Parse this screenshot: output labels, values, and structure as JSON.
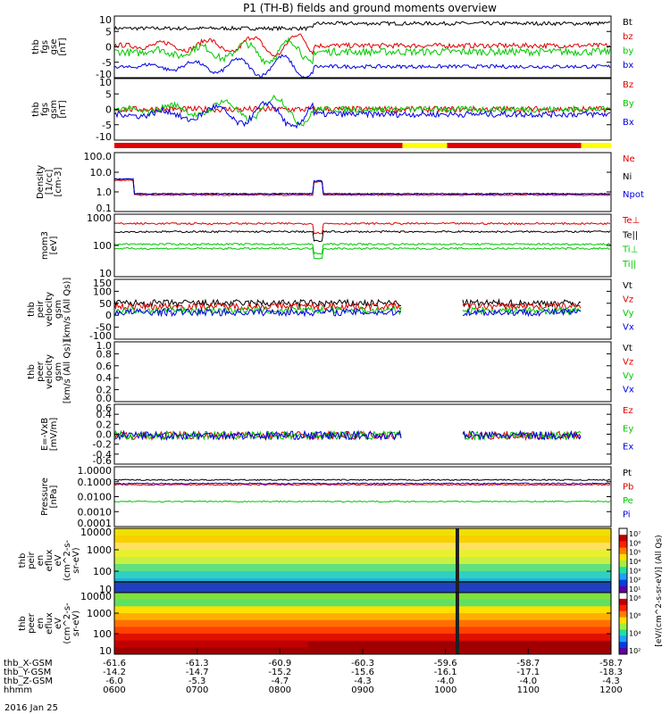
{
  "title": "P1 (TH-B) fields and ground moments overview",
  "footer_date": "2016 Jan 25",
  "colors": {
    "black": "#000000",
    "red": "#e00000",
    "green": "#00c800",
    "blue": "#0000e0",
    "yellow": "#ffff00"
  },
  "mode_bar": {
    "segments": [
      {
        "color": "red",
        "from": 0,
        "to": 0.58
      },
      {
        "color": "yellow",
        "from": 0.58,
        "to": 0.67
      },
      {
        "color": "red",
        "from": 0.67,
        "to": 0.94
      },
      {
        "color": "yellow",
        "from": 0.94,
        "to": 1.0
      }
    ]
  },
  "chart_data": [
    {
      "type": "line",
      "ylabel": [
        "thb",
        "fgs",
        "gse",
        "[nT]"
      ],
      "ylim": [
        -10,
        10
      ],
      "yticks": [
        "10",
        "5",
        "0",
        "-5",
        "-10"
      ],
      "series": [
        {
          "name": "Bt",
          "color": "black"
        },
        {
          "name": "bz",
          "color": "red"
        },
        {
          "name": "by",
          "color": "green"
        },
        {
          "name": "bx",
          "color": "blue"
        }
      ]
    },
    {
      "type": "line",
      "ylabel": [
        "thb",
        "fgs",
        "gsm",
        "[nT]"
      ],
      "ylim": [
        -10,
        10
      ],
      "yticks": [
        "10",
        "5",
        "0",
        "-5",
        "-10"
      ],
      "series": [
        {
          "name": "Bz",
          "color": "red"
        },
        {
          "name": "By",
          "color": "green"
        },
        {
          "name": "Bx",
          "color": "blue"
        }
      ]
    },
    {
      "type": "line",
      "ylabel": [
        "Density",
        "[1/cc]",
        "[cm-3]"
      ],
      "log": true,
      "ylim": [
        0.1,
        100
      ],
      "yticks": [
        "100.0",
        "10.0",
        "1.0",
        "0.1"
      ],
      "series": [
        {
          "name": "Ne",
          "color": "red"
        },
        {
          "name": "Ni",
          "color": "black"
        },
        {
          "name": "Npot",
          "color": "blue"
        }
      ]
    },
    {
      "type": "line",
      "ylabel": [
        "mom3",
        "[eV]"
      ],
      "log": true,
      "ylim": [
        10,
        1000
      ],
      "yticks": [
        "1000",
        "100",
        "10"
      ],
      "series": [
        {
          "name": "Te⊥",
          "color": "red"
        },
        {
          "name": "Te||",
          "color": "black"
        },
        {
          "name": "Ti⊥",
          "color": "green"
        },
        {
          "name": "Ti||",
          "color": "green"
        }
      ]
    },
    {
      "type": "line",
      "ylabel": [
        "thb",
        "peir",
        "velocity",
        "gsm",
        "[km/s (All Qs)]"
      ],
      "ylim": [
        -100,
        150
      ],
      "yticks": [
        "150",
        "100",
        "50",
        "0",
        "-50",
        "-100"
      ],
      "series": [
        {
          "name": "Vt",
          "color": "black"
        },
        {
          "name": "Vz",
          "color": "red"
        },
        {
          "name": "Vy",
          "color": "green"
        },
        {
          "name": "Vx",
          "color": "blue"
        }
      ]
    },
    {
      "type": "line",
      "ylabel": [
        "thb",
        "peer",
        "velocity",
        "gsm",
        "[km/s (All Qs)]"
      ],
      "ylim": [
        0,
        1
      ],
      "yticks": [
        "1.0",
        "0.8",
        "0.6",
        "0.4",
        "0.2",
        "0.0"
      ],
      "series": [
        {
          "name": "Vt",
          "color": "black"
        },
        {
          "name": "Vz",
          "color": "red"
        },
        {
          "name": "Vy",
          "color": "green"
        },
        {
          "name": "Vx",
          "color": "blue"
        }
      ]
    },
    {
      "type": "line",
      "ylabel": [
        "E=-VxB",
        "[mV/m]"
      ],
      "ylim": [
        -0.6,
        0.6
      ],
      "yticks": [
        "0.6",
        "0.4",
        "0.2",
        "0.0",
        "-0.2",
        "-0.4",
        "-0.6"
      ],
      "series": [
        {
          "name": "Ez",
          "color": "red"
        },
        {
          "name": "Ey",
          "color": "green"
        },
        {
          "name": "Ex",
          "color": "blue"
        }
      ]
    },
    {
      "type": "line",
      "ylabel": [
        "Pressure",
        "[nPa]"
      ],
      "log": true,
      "ylim": [
        0.0001,
        1
      ],
      "yticks": [
        "1.0000",
        "0.1000",
        "0.0100",
        "0.0010",
        "0.0001"
      ],
      "series": [
        {
          "name": "Pt",
          "color": "black"
        },
        {
          "name": "Pb",
          "color": "red"
        },
        {
          "name": "Pe",
          "color": "green"
        },
        {
          "name": "Pi",
          "color": "blue"
        }
      ]
    },
    {
      "type": "heatmap",
      "ylabel": [
        "thb",
        "peir",
        "en",
        "eflux",
        "eV",
        "(cm^2-s-",
        "sr-eV)"
      ],
      "yticks": [
        "10000",
        "1000",
        "100",
        "10"
      ]
    },
    {
      "type": "heatmap",
      "ylabel": [
        "thb",
        "peer",
        "en",
        "eflux",
        "eV",
        "(cm^2-s-",
        "sr-eV)"
      ],
      "yticks": [
        "10000",
        "1000",
        "100",
        "10"
      ]
    }
  ],
  "colorbar": {
    "label": "[eV/(cm^2-s-sr-eV)] (All Qs)",
    "top_ticks": [
      "10⁷",
      "10⁶",
      "10⁵",
      "10⁴",
      "10³",
      "10²",
      "10¹"
    ],
    "bottom_ticks": [
      "10⁸",
      "10⁶",
      "10⁴",
      "10²"
    ]
  },
  "x_axis": {
    "row_labels": [
      "thb_X-GSM",
      "thb_Y-GSM",
      "thb_Z-GSM",
      "hhmm"
    ],
    "rows": [
      [
        "-61.6",
        "-61.3",
        "-60.9",
        "-60.3",
        "-59.6",
        "-58.7",
        "-58.7"
      ],
      [
        "-14.2",
        "-14.7",
        "-15.2",
        "-15.6",
        "-16.1",
        "-17.1",
        "-18.3"
      ],
      [
        "-6.0",
        "-5.3",
        "-4.7",
        "-4.3",
        "-4.0",
        "-4.0",
        "-4.3"
      ],
      [
        "0600",
        "0700",
        "0800",
        "0900",
        "1000",
        "1100",
        "1200"
      ]
    ]
  }
}
